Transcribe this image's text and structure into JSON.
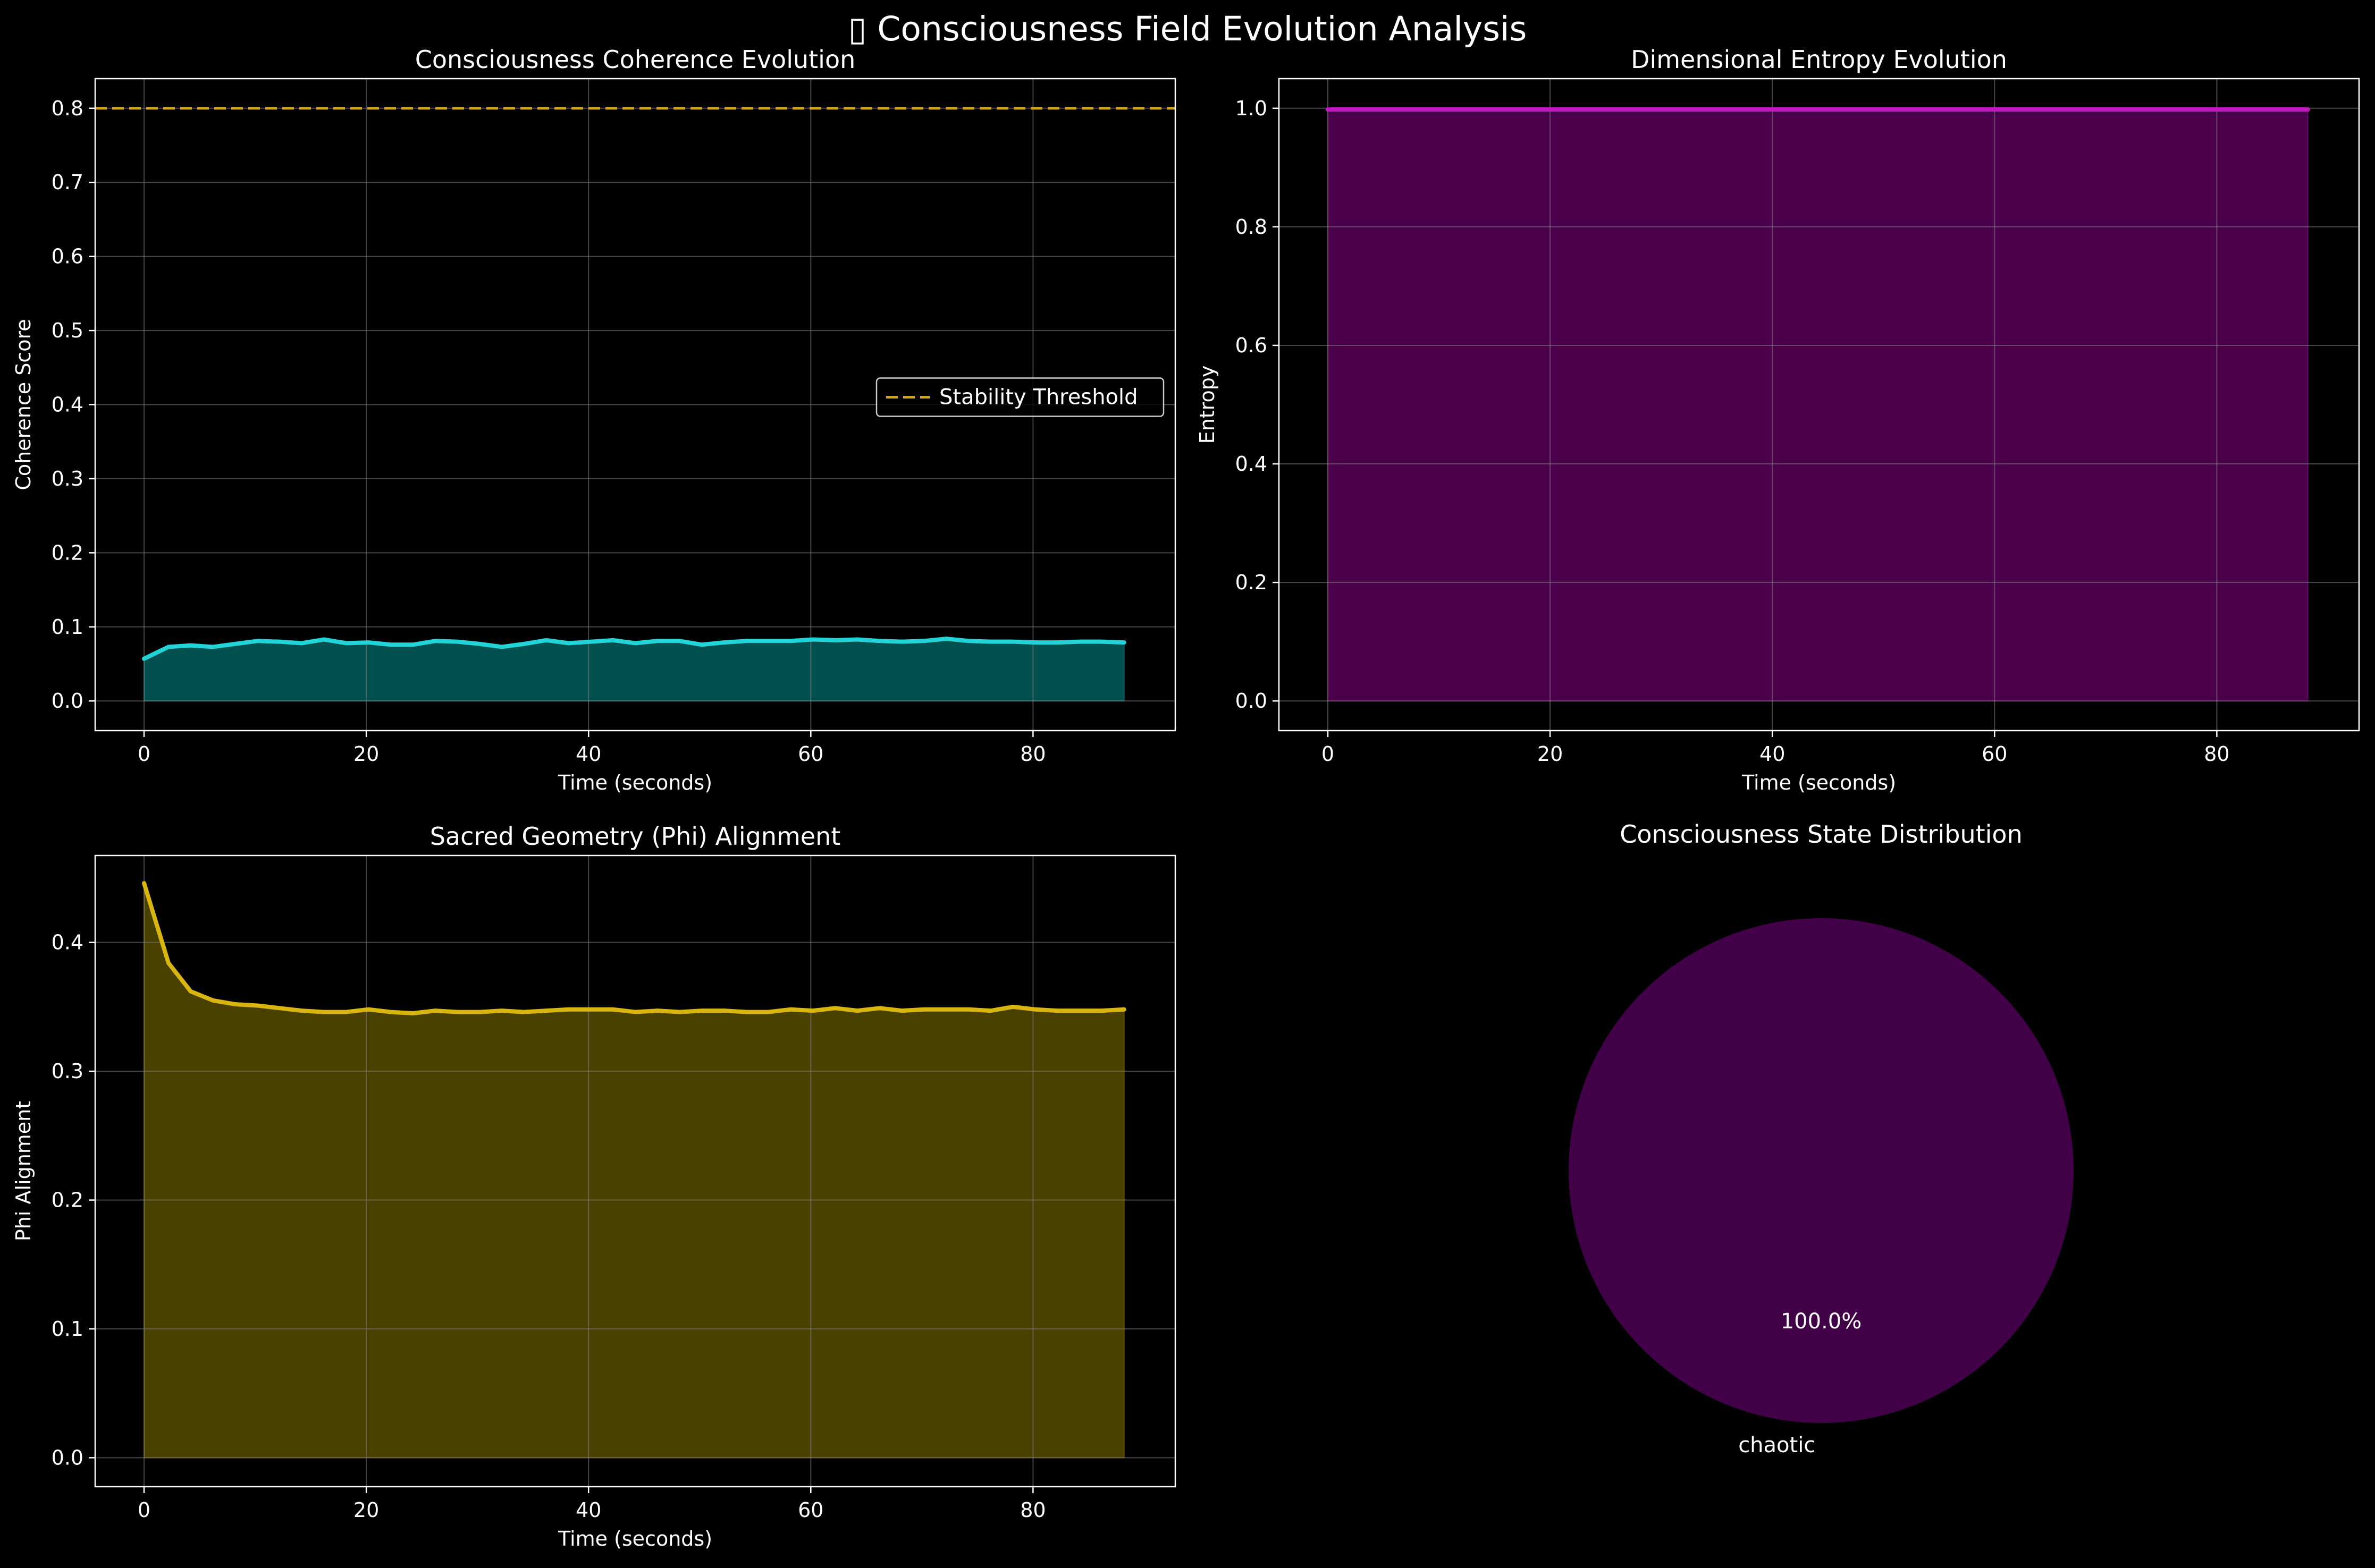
{
  "figure": {
    "title": "▯ Consciousness Field Evolution Analysis",
    "background": "#000000",
    "foreground": "#ffffff",
    "grid_color": "#808080"
  },
  "chart_data": [
    {
      "id": "coherence",
      "type": "area",
      "title": "Consciousness Coherence Evolution",
      "xlabel": "Time (seconds)",
      "ylabel": "Coherence Score",
      "xlim": [
        -4.4,
        92.8
      ],
      "ylim": [
        -0.04,
        0.84
      ],
      "xticks": [
        0,
        20,
        40,
        60,
        80
      ],
      "yticks": [
        0.0,
        0.1,
        0.2,
        0.3,
        0.4,
        0.5,
        0.6,
        0.7,
        0.8
      ],
      "ytick_decimals": 1,
      "grid": true,
      "legend_position": "center-right",
      "line_color": "#22d3d8",
      "fill_color": "#035050",
      "x": [
        0,
        2.2,
        4.2,
        6.2,
        8.2,
        10.2,
        12.2,
        14.2,
        16.2,
        18.2,
        20.2,
        22.2,
        24.2,
        26.2,
        28.2,
        30.2,
        32.2,
        34.2,
        36.2,
        38.2,
        40.2,
        42.2,
        44.2,
        46.2,
        48.2,
        50.2,
        52.2,
        54.2,
        56.2,
        58.2,
        60.2,
        62.2,
        64.2,
        66.2,
        68.2,
        70.2,
        72.2,
        74.2,
        76.2,
        78.2,
        80.2,
        82.2,
        84.2,
        86.2,
        88.2
      ],
      "y": [
        0.057,
        0.073,
        0.075,
        0.073,
        0.077,
        0.081,
        0.08,
        0.078,
        0.083,
        0.078,
        0.079,
        0.076,
        0.076,
        0.081,
        0.08,
        0.077,
        0.073,
        0.077,
        0.082,
        0.078,
        0.08,
        0.082,
        0.078,
        0.081,
        0.081,
        0.076,
        0.079,
        0.081,
        0.081,
        0.081,
        0.083,
        0.082,
        0.083,
        0.081,
        0.08,
        0.081,
        0.084,
        0.081,
        0.08,
        0.08,
        0.079,
        0.079,
        0.08,
        0.08,
        0.079
      ],
      "threshold": {
        "label": "Stability Threshold",
        "value": 0.8,
        "color": "#d4a614"
      }
    },
    {
      "id": "entropy",
      "type": "area",
      "title": "Dimensional Entropy Evolution",
      "xlabel": "Time (seconds)",
      "ylabel": "Entropy",
      "xlim": [
        -4.4,
        92.8
      ],
      "ylim": [
        -0.05,
        1.05
      ],
      "xticks": [
        0,
        20,
        40,
        60,
        80
      ],
      "yticks": [
        0.0,
        0.2,
        0.4,
        0.6,
        0.8,
        1.0
      ],
      "ytick_decimals": 1,
      "grid": true,
      "line_color": "#c516c2",
      "fill_color": "#4b004b",
      "x": [
        0,
        88.2
      ],
      "y": [
        0.998,
        0.998
      ]
    },
    {
      "id": "phi",
      "type": "area",
      "title": "Sacred Geometry (Phi) Alignment",
      "xlabel": "Time (seconds)",
      "ylabel": "Phi Alignment",
      "xlim": [
        -4.4,
        92.8
      ],
      "ylim": [
        -0.0225,
        0.4675
      ],
      "xticks": [
        0,
        20,
        40,
        60,
        80
      ],
      "yticks": [
        0.0,
        0.1,
        0.2,
        0.3,
        0.4
      ],
      "ytick_decimals": 1,
      "grid": true,
      "line_color": "#d9b50f",
      "fill_color": "#4a4000",
      "x": [
        0,
        2.2,
        4.2,
        6.2,
        8.2,
        10.2,
        12.2,
        14.2,
        16.2,
        18.2,
        20.2,
        22.2,
        24.2,
        26.2,
        28.2,
        30.2,
        32.2,
        34.2,
        36.2,
        38.2,
        40.2,
        42.2,
        44.2,
        46.2,
        48.2,
        50.2,
        52.2,
        54.2,
        56.2,
        58.2,
        60.2,
        62.2,
        64.2,
        66.2,
        68.2,
        70.2,
        72.2,
        74.2,
        76.2,
        78.2,
        80.2,
        82.2,
        84.2,
        86.2,
        88.2
      ],
      "y": [
        0.446,
        0.384,
        0.362,
        0.355,
        0.352,
        0.351,
        0.349,
        0.347,
        0.346,
        0.346,
        0.348,
        0.346,
        0.345,
        0.347,
        0.346,
        0.346,
        0.347,
        0.346,
        0.347,
        0.348,
        0.348,
        0.348,
        0.346,
        0.347,
        0.346,
        0.347,
        0.347,
        0.346,
        0.346,
        0.348,
        0.347,
        0.349,
        0.347,
        0.349,
        0.347,
        0.348,
        0.348,
        0.348,
        0.347,
        0.35,
        0.348,
        0.347,
        0.347,
        0.347,
        0.348
      ]
    },
    {
      "id": "states",
      "type": "pie",
      "title": "Consciousness State Distribution",
      "slices": [
        {
          "label": "chaotic",
          "value": 100.0,
          "pct_label": "100.0%",
          "color": "#420048"
        }
      ]
    }
  ]
}
